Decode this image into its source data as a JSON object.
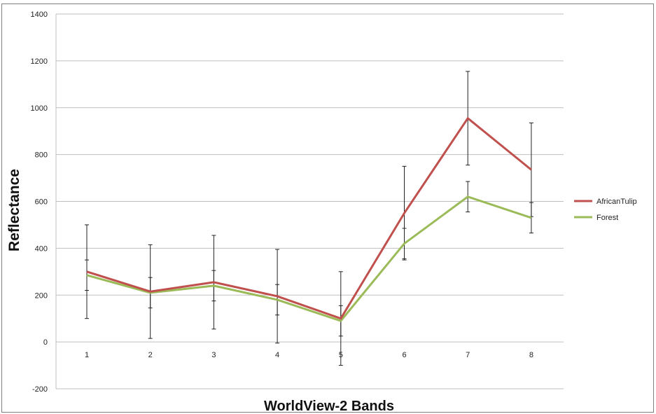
{
  "chart_data": {
    "type": "line",
    "title": "",
    "xlabel": "WorldView-2 Bands",
    "ylabel": "Reflectance",
    "categories": [
      "1",
      "2",
      "3",
      "4",
      "5",
      "6",
      "7",
      "8"
    ],
    "ylim": [
      -200,
      1400
    ],
    "yticks": [
      "-200",
      "0",
      "200",
      "400",
      "600",
      "800",
      "1000",
      "1200",
      "1400"
    ],
    "grid": "horizontal",
    "legend_position": "right",
    "series": [
      {
        "name": "AfricanTulip",
        "color": "#c0504d",
        "values": [
          300,
          215,
          255,
          195,
          100,
          550,
          955,
          735
        ],
        "error": [
          200,
          200,
          200,
          200,
          200,
          200,
          200,
          200
        ]
      },
      {
        "name": "Forest",
        "color": "#9bbb59",
        "values": [
          285,
          210,
          240,
          180,
          90,
          420,
          620,
          530
        ],
        "error": [
          65,
          65,
          65,
          65,
          65,
          65,
          65,
          65
        ]
      }
    ]
  }
}
